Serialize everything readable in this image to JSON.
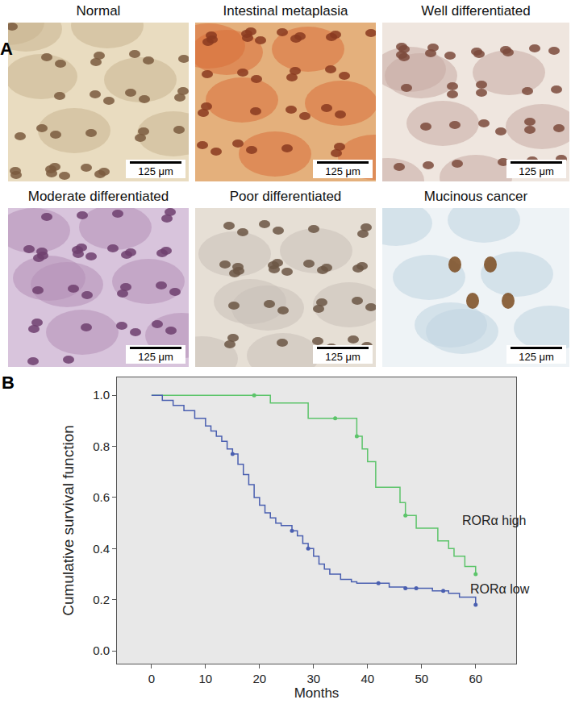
{
  "panels": [
    {
      "label": "A",
      "images": [
        {
          "title": "Normal",
          "scale_bar": "125 μm"
        },
        {
          "title": "Intestinal metaplasia",
          "scale_bar": "125 μm"
        },
        {
          "title": "Well differentiated",
          "scale_bar": "125 μm"
        },
        {
          "title": "Moderate differentiated",
          "scale_bar": "125 μm"
        },
        {
          "title": "Poor differentiated",
          "scale_bar": "125 μm"
        },
        {
          "title": "Mucinous cancer",
          "scale_bar": "125 μm"
        }
      ]
    },
    {
      "label": "B"
    }
  ],
  "chart_data": {
    "type": "line",
    "xlabel": "Months",
    "ylabel": "Cumulative survival function",
    "xlim": [
      -6.4,
      67.5
    ],
    "xticks": [
      0,
      10,
      20,
      30,
      40,
      50,
      60
    ],
    "ylim": [
      -0.05,
      1.07
    ],
    "yticks": [
      {
        "value": 0,
        "label": "0.0"
      },
      {
        "value": 0.2,
        "label": "0.2"
      },
      {
        "value": 0.4,
        "label": "0.4"
      },
      {
        "value": 0.6,
        "label": "0.6"
      },
      {
        "value": 0.8,
        "label": "0.8"
      },
      {
        "value": 1,
        "label": "1.0"
      }
    ],
    "grid": false,
    "line_style": "step",
    "marker": "circle",
    "series": [
      {
        "name": "RORα high",
        "color": "#5cc46a",
        "x": [
          0,
          22,
          29,
          38,
          39,
          40,
          41.5,
          46,
          47,
          49,
          53,
          55,
          56,
          58,
          60
        ],
        "values": [
          1,
          0.97,
          0.91,
          0.84,
          0.79,
          0.74,
          0.64,
          0.58,
          0.53,
          0.48,
          0.43,
          0.4,
          0.37,
          0.33,
          0.3
        ],
        "censored": {
          "x": [
            19,
            34,
            38,
            47,
            60
          ],
          "values": [
            1,
            0.91,
            0.84,
            0.53,
            0.3
          ]
        }
      },
      {
        "name": "RORα low",
        "color": "#4a5fb0",
        "x": [
          0,
          2,
          4,
          6,
          8,
          10,
          11,
          12,
          13,
          14,
          15,
          16,
          17,
          18,
          19,
          20,
          21,
          22,
          23,
          24,
          26,
          27,
          28,
          29,
          30,
          31,
          32,
          33,
          35,
          37,
          38,
          44,
          47,
          52,
          55,
          57,
          60
        ],
        "values": [
          1,
          0.98,
          0.96,
          0.94,
          0.91,
          0.88,
          0.86,
          0.84,
          0.82,
          0.79,
          0.77,
          0.73,
          0.69,
          0.65,
          0.6,
          0.57,
          0.54,
          0.52,
          0.5,
          0.49,
          0.47,
          0.45,
          0.42,
          0.4,
          0.37,
          0.34,
          0.32,
          0.3,
          0.28,
          0.27,
          0.265,
          0.25,
          0.245,
          0.235,
          0.225,
          0.21,
          0.18
        ],
        "censored": {
          "x": [
            15,
            26,
            29,
            42,
            47,
            49,
            54,
            60
          ],
          "values": [
            0.77,
            0.47,
            0.4,
            0.265,
            0.245,
            0.245,
            0.235,
            0.18
          ]
        }
      }
    ]
  }
}
